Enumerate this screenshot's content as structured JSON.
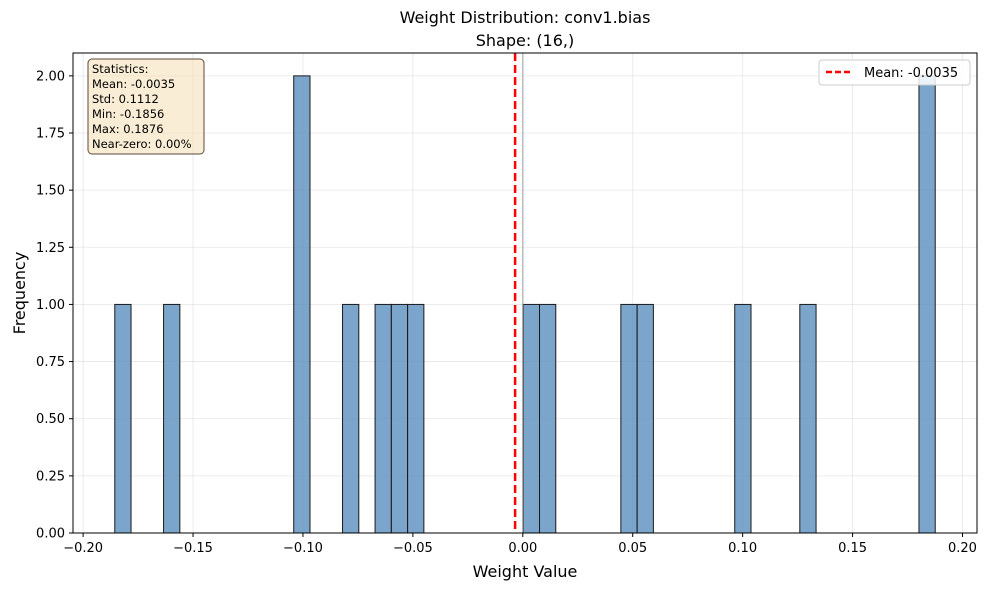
{
  "chart_data": {
    "type": "bar",
    "title": "Weight Distribution: conv1.bias",
    "subtitle": "Shape: (16,)",
    "xlabel": "Weight Value",
    "ylabel": "Frequency",
    "xlim": [
      -0.2046,
      0.2066
    ],
    "ylim": [
      0,
      2.1
    ],
    "x_ticks": [
      -0.2,
      -0.15,
      -0.1,
      -0.05,
      0.0,
      0.05,
      0.1,
      0.15,
      0.2
    ],
    "x_tick_labels": [
      "−0.20",
      "−0.15",
      "−0.10",
      "−0.05",
      "0.00",
      "0.05",
      "0.10",
      "0.15",
      "0.20"
    ],
    "y_ticks": [
      0,
      0.25,
      0.5,
      0.75,
      1.0,
      1.25,
      1.5,
      1.75,
      2.0
    ],
    "y_tick_labels": [
      "0.00",
      "0.25",
      "0.50",
      "0.75",
      "1.00",
      "1.25",
      "1.50",
      "1.75",
      "2.00"
    ],
    "grid": true,
    "bins": [
      {
        "x0": -0.1856,
        "x1": -0.1782,
        "count": 1
      },
      {
        "x0": -0.1634,
        "x1": -0.156,
        "count": 1
      },
      {
        "x0": -0.1042,
        "x1": -0.0968,
        "count": 2
      },
      {
        "x0": -0.082,
        "x1": -0.0746,
        "count": 1
      },
      {
        "x0": -0.0672,
        "x1": -0.0598,
        "count": 1
      },
      {
        "x0": -0.0598,
        "x1": -0.0524,
        "count": 1
      },
      {
        "x0": -0.0524,
        "x1": -0.045,
        "count": 1
      },
      {
        "x0": 0.0002,
        "x1": 0.0076,
        "count": 1
      },
      {
        "x0": 0.0076,
        "x1": 0.015,
        "count": 1
      },
      {
        "x0": 0.0446,
        "x1": 0.052,
        "count": 1
      },
      {
        "x0": 0.052,
        "x1": 0.0594,
        "count": 1
      },
      {
        "x0": 0.0964,
        "x1": 0.1038,
        "count": 1
      },
      {
        "x0": 0.126,
        "x1": 0.1334,
        "count": 1
      },
      {
        "x0": 0.1802,
        "x1": 0.1876,
        "count": 2
      }
    ],
    "mean_line": {
      "x": -0.0035,
      "label": "Mean: -0.0035",
      "color": "#ff0000"
    },
    "zero_line": {
      "x": 0.0,
      "color": "#999999"
    },
    "bar_color": "#5b8fbf",
    "bar_edge_color": "#1a1a1a",
    "legend_position": "top-right",
    "stats_box": {
      "position": "top-left",
      "lines": [
        "Statistics:",
        "Mean: -0.0035",
        "Std: 0.1112",
        "Min: -0.1856",
        "Max: 0.1876",
        "Near-zero: 0.00%"
      ],
      "background": "#f5deb3"
    }
  }
}
